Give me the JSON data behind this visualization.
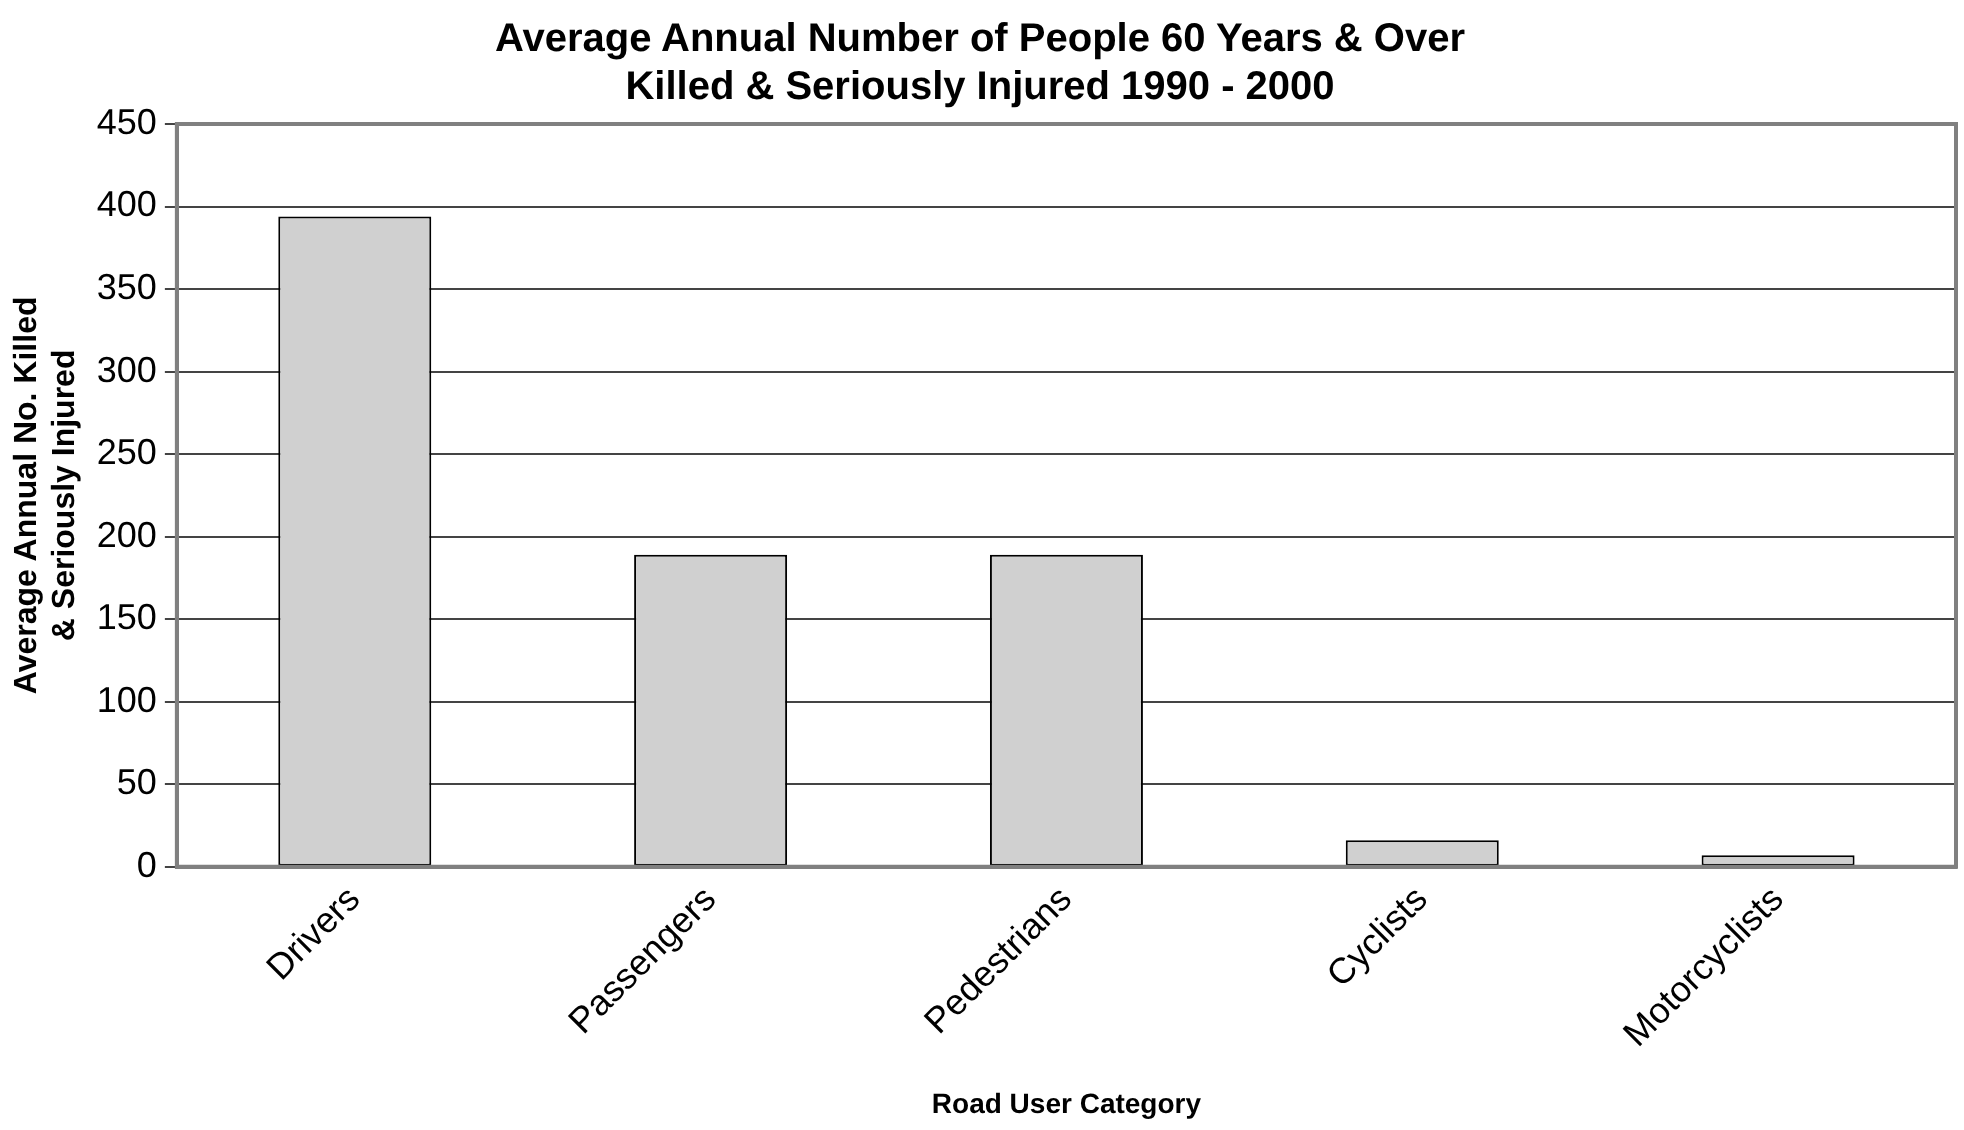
{
  "chart_data": {
    "type": "bar",
    "title": [
      "Average Annual Number of People 60 Years & Over",
      "Killed & Seriously Injured 1990 - 2000"
    ],
    "xlabel": "Road User Category",
    "ylabel": [
      "Average Annual No. Killed",
      "& Seriously Injured"
    ],
    "categories": [
      "Drivers",
      "Passengers",
      "Pedestrians",
      "Cyclists",
      "Motorcyclists"
    ],
    "values": [
      394,
      189,
      189,
      16,
      7
    ],
    "color": "#d0d0d0",
    "ylim": [
      0,
      450
    ],
    "yticks": [
      0,
      50,
      100,
      150,
      200,
      250,
      300,
      350,
      400,
      450
    ],
    "grid": "y",
    "legend": false
  }
}
